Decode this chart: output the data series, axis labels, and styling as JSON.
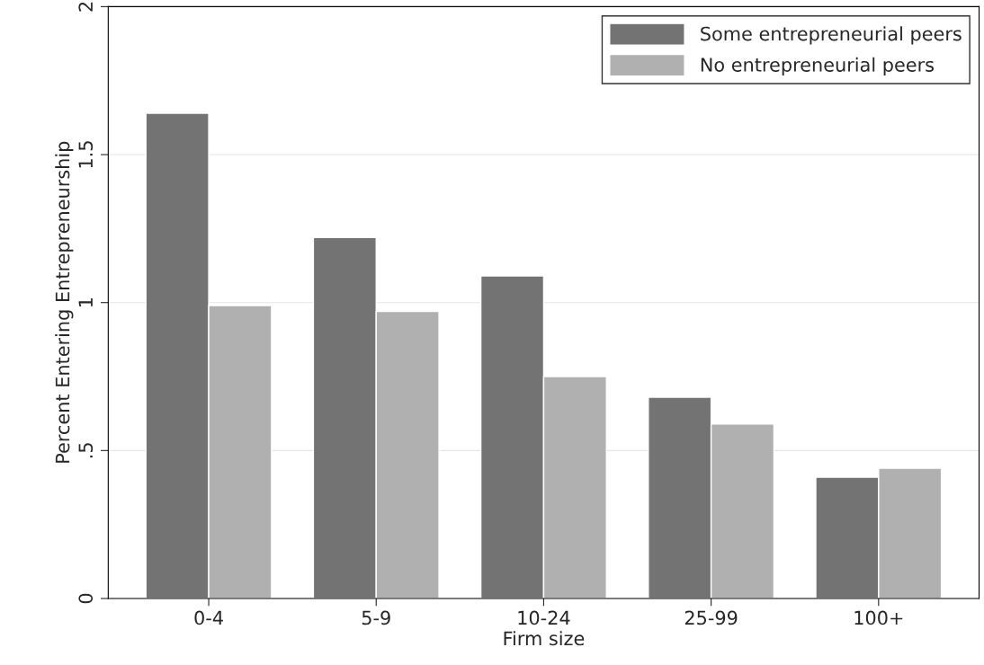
{
  "chart_data": {
    "type": "bar",
    "xlabel": "Firm size",
    "ylabel": "Percent Entering Entrepreneurship",
    "categories": [
      "0-4",
      "5-9",
      "10-24",
      "25-99",
      "100+"
    ],
    "series": [
      {
        "name": "Some entrepreneurial peers",
        "color": "#737373",
        "values": [
          1.64,
          1.22,
          1.09,
          0.68,
          0.41
        ]
      },
      {
        "name": "No entrepreneurial peers",
        "color": "#b0b0b0",
        "values": [
          0.99,
          0.97,
          0.75,
          0.59,
          0.44
        ]
      }
    ],
    "ylim": [
      0,
      2
    ],
    "yticks": [
      0,
      {
        "value": 0.5,
        "label": ".5"
      },
      1,
      1.5,
      2
    ],
    "grid": "y",
    "legend": "top right"
  }
}
